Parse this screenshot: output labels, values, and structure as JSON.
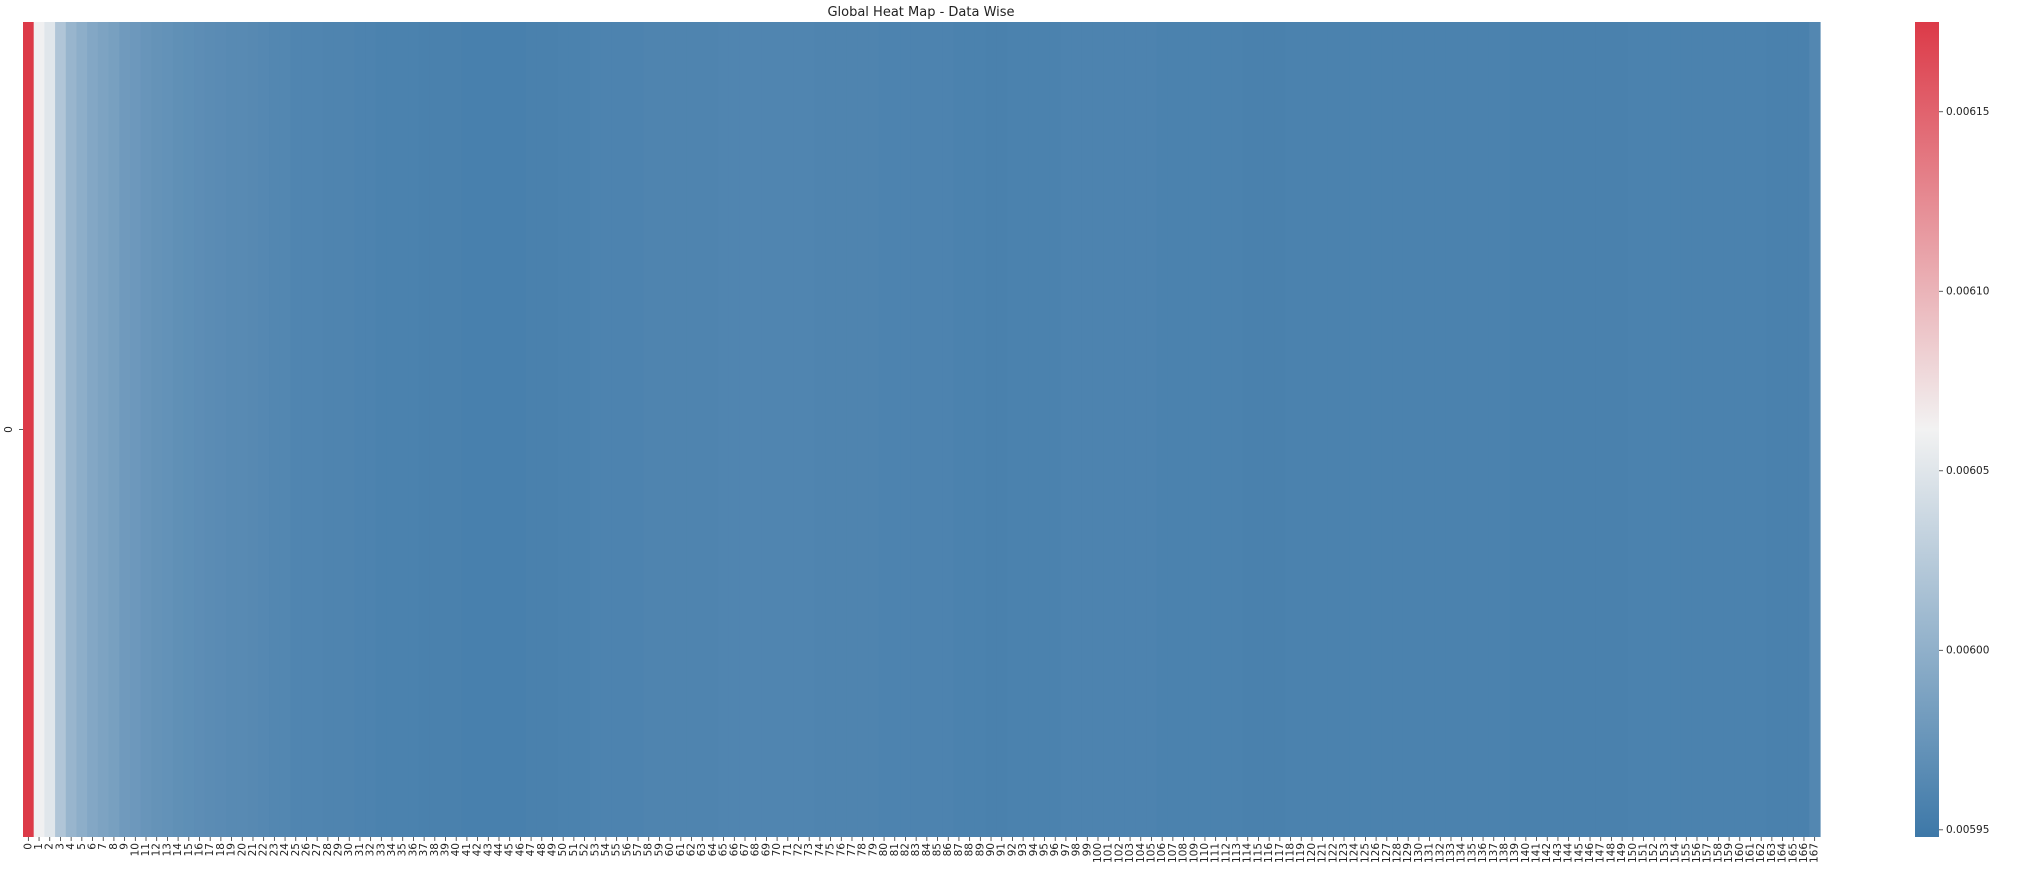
{
  "chart_data": {
    "type": "heatmap",
    "title": "Global Heat Map - Data Wise",
    "xlabel": "",
    "ylabel": "",
    "rows": [
      "0"
    ],
    "columns": [
      "0",
      "1",
      "2",
      "3",
      "4",
      "5",
      "6",
      "7",
      "8",
      "9",
      "10",
      "11",
      "12",
      "13",
      "14",
      "15",
      "16",
      "17",
      "18",
      "19",
      "20",
      "21",
      "22",
      "23",
      "24",
      "25",
      "26",
      "27",
      "28",
      "29",
      "30",
      "31",
      "32",
      "33",
      "34",
      "35",
      "36",
      "37",
      "38",
      "39",
      "40",
      "41",
      "42",
      "43",
      "44",
      "45",
      "46",
      "47",
      "48",
      "49",
      "50",
      "51",
      "52",
      "53",
      "54",
      "55",
      "56",
      "57",
      "58",
      "59",
      "60",
      "61",
      "62",
      "63",
      "64",
      "65",
      "66",
      "67",
      "68",
      "69",
      "70",
      "71",
      "72",
      "73",
      "74",
      "75",
      "76",
      "77",
      "78",
      "79",
      "80",
      "81",
      "82",
      "83",
      "84",
      "85",
      "86",
      "87",
      "88",
      "89",
      "90",
      "91",
      "92",
      "93",
      "94",
      "95",
      "96",
      "97",
      "98",
      "99",
      "100",
      "101",
      "102",
      "103",
      "104",
      "105",
      "106",
      "107",
      "108",
      "109",
      "110",
      "111",
      "112",
      "113",
      "114",
      "115",
      "116",
      "117",
      "118",
      "119",
      "120",
      "121",
      "122",
      "123",
      "124",
      "125",
      "126",
      "127",
      "128",
      "129",
      "130",
      "131",
      "132",
      "133",
      "134",
      "135",
      "136",
      "137",
      "138",
      "139",
      "140",
      "141",
      "142",
      "143",
      "144",
      "145",
      "146",
      "147",
      "148",
      "149",
      "150",
      "151",
      "152",
      "153",
      "154",
      "155",
      "156",
      "157",
      "158",
      "159",
      "160",
      "161",
      "162",
      "163",
      "164",
      "165",
      "166",
      "167"
    ],
    "values": [
      [
        0.006175,
        0.00606,
        0.00605,
        0.00602,
        0.006005,
        0.005998,
        0.005992,
        0.005988,
        0.005985,
        0.00598,
        0.005978,
        0.005975,
        0.005973,
        0.005972,
        0.00597,
        0.005969,
        0.005968,
        0.005967,
        0.005966,
        0.005965,
        0.005965,
        0.005964,
        0.005963,
        0.005962,
        0.005962,
        0.00596,
        0.00596,
        0.00596,
        0.005959,
        0.005959,
        0.005959,
        0.005958,
        0.005958,
        0.005957,
        0.005957,
        0.005957,
        0.005957,
        0.005956,
        0.005956,
        0.005956,
        0.005956,
        0.005955,
        0.005955,
        0.005955,
        0.005955,
        0.005955,
        0.005955,
        0.005956,
        0.005956,
        0.005956,
        0.005957,
        0.005957,
        0.005957,
        0.005958,
        0.005958,
        0.005958,
        0.005958,
        0.005958,
        0.005959,
        0.005959,
        0.005959,
        0.005959,
        0.005959,
        0.005959,
        0.005959,
        0.00596,
        0.00596,
        0.00596,
        0.00596,
        0.00596,
        0.00596,
        0.00596,
        0.00596,
        0.00596,
        0.005959,
        0.005959,
        0.005959,
        0.005959,
        0.005959,
        0.005959,
        0.005958,
        0.005958,
        0.005958,
        0.005958,
        0.005958,
        0.005958,
        0.005958,
        0.005957,
        0.005957,
        0.005957,
        0.005956,
        0.005956,
        0.005957,
        0.005957,
        0.005957,
        0.005957,
        0.005957,
        0.005958,
        0.005958,
        0.005958,
        0.005958,
        0.005958,
        0.005958,
        0.005958,
        0.005958,
        0.005958,
        0.005957,
        0.005957,
        0.005957,
        0.005957,
        0.005957,
        0.005957,
        0.005957,
        0.005957,
        0.005956,
        0.005956,
        0.005956,
        0.005956,
        0.005957,
        0.005957,
        0.005957,
        0.005957,
        0.005957,
        0.005957,
        0.005957,
        0.005957,
        0.005957,
        0.005957,
        0.005957,
        0.005957,
        0.005957,
        0.005957,
        0.005957,
        0.005957,
        0.005957,
        0.005957,
        0.005957,
        0.005957,
        0.005957,
        0.005956,
        0.005956,
        0.005956,
        0.005956,
        0.005956,
        0.005956,
        0.005956,
        0.005956,
        0.005956,
        0.005956,
        0.005956,
        0.005957,
        0.005957,
        0.005957,
        0.005957,
        0.005957,
        0.005957,
        0.005957,
        0.005957,
        0.005957,
        0.005957,
        0.005957,
        0.005957,
        0.005957,
        0.005956,
        0.005956,
        0.005956,
        0.005956,
        0.005962
      ]
    ],
    "colorbar": {
      "range": [
        0.005948,
        0.006175
      ],
      "ticks": [
        0.00595,
        0.006,
        0.00605,
        0.0061,
        0.00615
      ],
      "tick_labels": [
        "0.00595",
        "0.00600",
        "0.00605",
        "0.00610",
        "0.00615"
      ],
      "colormap": [
        "#3d78a8",
        "#f2f2f2",
        "#dc3a48"
      ]
    },
    "grid": false,
    "legend": "colorbar-right"
  }
}
